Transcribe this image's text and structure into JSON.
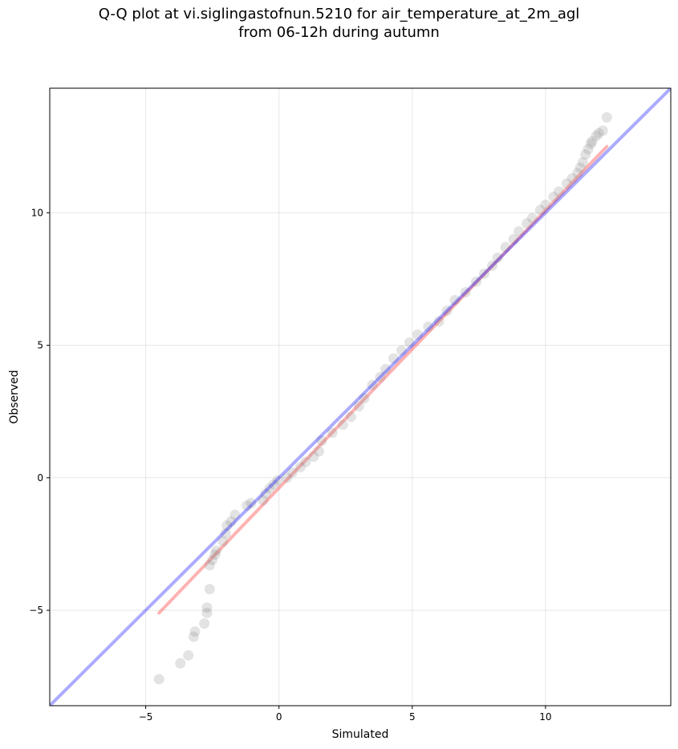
{
  "chart_data": {
    "type": "scatter",
    "title_line1": "Q-Q plot at vi.siglingastofnun.5210 for air_temperature_at_2m_agl",
    "title_line2": "from 06-12h during autumn",
    "xlabel": "Simulated",
    "ylabel": "Observed",
    "xlim": [
      -8.6,
      14.7
    ],
    "ylim": [
      -8.6,
      14.7
    ],
    "xticks": [
      -5,
      0,
      5,
      10
    ],
    "yticks": [
      -5,
      0,
      5,
      10
    ],
    "xtick_labels": [
      "−5",
      "0",
      "5",
      "10"
    ],
    "ytick_labels": [
      "−5",
      "0",
      "5",
      "10"
    ],
    "grid": true,
    "identity_line": {
      "color": "#0000ff",
      "from": [
        -8.6,
        -8.6
      ],
      "to": [
        14.7,
        14.7
      ]
    },
    "fit_line": {
      "color": "#ff0000",
      "from": [
        -4.5,
        -5.1
      ],
      "to": [
        12.3,
        12.5
      ]
    },
    "point_color": "#808080",
    "points": [
      [
        -4.5,
        -7.6
      ],
      [
        -3.7,
        -7.0
      ],
      [
        -3.4,
        -6.7
      ],
      [
        -3.2,
        -6.0
      ],
      [
        -3.15,
        -5.8
      ],
      [
        -2.8,
        -5.5
      ],
      [
        -2.7,
        -5.1
      ],
      [
        -2.7,
        -4.9
      ],
      [
        -2.6,
        -4.2
      ],
      [
        -2.6,
        -3.3
      ],
      [
        -2.5,
        -3.1
      ],
      [
        -2.4,
        -2.9
      ],
      [
        -2.35,
        -2.75
      ],
      [
        -2.1,
        -2.4
      ],
      [
        -2.0,
        -2.1
      ],
      [
        -1.95,
        -1.8
      ],
      [
        -1.8,
        -1.65
      ],
      [
        -1.65,
        -1.4
      ],
      [
        -1.2,
        -1.05
      ],
      [
        -1.05,
        -0.95
      ],
      [
        -0.6,
        -0.85
      ],
      [
        -0.5,
        -0.6
      ],
      [
        -0.35,
        -0.4
      ],
      [
        -0.2,
        -0.25
      ],
      [
        -0.05,
        -0.1
      ],
      [
        0.3,
        0.0
      ],
      [
        0.5,
        0.2
      ],
      [
        0.8,
        0.4
      ],
      [
        1.0,
        0.6
      ],
      [
        1.3,
        0.8
      ],
      [
        1.5,
        1.0
      ],
      [
        1.6,
        1.4
      ],
      [
        2.0,
        1.7
      ],
      [
        2.4,
        2.0
      ],
      [
        2.7,
        2.3
      ],
      [
        3.0,
        2.7
      ],
      [
        3.2,
        3.0
      ],
      [
        3.5,
        3.5
      ],
      [
        3.8,
        3.8
      ],
      [
        4.0,
        4.1
      ],
      [
        4.3,
        4.5
      ],
      [
        4.6,
        4.8
      ],
      [
        4.9,
        5.1
      ],
      [
        5.2,
        5.4
      ],
      [
        5.6,
        5.7
      ],
      [
        6.0,
        5.9
      ],
      [
        6.3,
        6.3
      ],
      [
        6.6,
        6.7
      ],
      [
        7.0,
        7.0
      ],
      [
        7.4,
        7.4
      ],
      [
        7.7,
        7.7
      ],
      [
        8.0,
        8.0
      ],
      [
        8.2,
        8.3
      ],
      [
        8.5,
        8.7
      ],
      [
        8.8,
        9.0
      ],
      [
        9.0,
        9.3
      ],
      [
        9.3,
        9.6
      ],
      [
        9.5,
        9.8
      ],
      [
        9.8,
        10.1
      ],
      [
        10.0,
        10.3
      ],
      [
        10.3,
        10.6
      ],
      [
        10.5,
        10.8
      ],
      [
        10.8,
        11.1
      ],
      [
        11.0,
        11.3
      ],
      [
        11.2,
        11.5
      ],
      [
        11.3,
        11.7
      ],
      [
        11.4,
        11.9
      ],
      [
        11.5,
        12.2
      ],
      [
        11.6,
        12.4
      ],
      [
        11.7,
        12.6
      ],
      [
        11.75,
        12.7
      ],
      [
        11.9,
        12.9
      ],
      [
        12.0,
        13.0
      ],
      [
        12.15,
        13.1
      ],
      [
        12.3,
        13.6
      ]
    ]
  }
}
